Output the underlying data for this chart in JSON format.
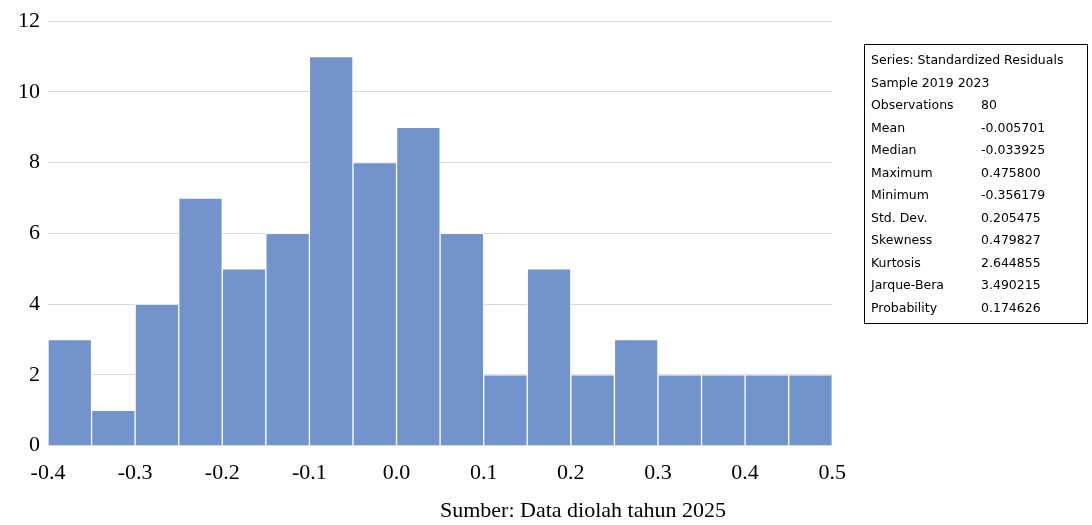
{
  "chart_data": {
    "type": "histogram",
    "bins": [
      -0.4,
      -0.35,
      -0.3,
      -0.25,
      -0.2,
      -0.15,
      -0.1,
      -0.05,
      0.0,
      0.05,
      0.1,
      0.15,
      0.2,
      0.25,
      0.3,
      0.35,
      0.4,
      0.45,
      0.5
    ],
    "values": [
      3,
      1,
      4,
      7,
      5,
      6,
      11,
      8,
      9,
      6,
      2,
      5,
      2,
      3,
      2,
      2,
      2,
      2
    ],
    "color": "#7393cc",
    "xlim": [
      -0.4,
      0.5
    ],
    "xticks": [
      {
        "value": -0.4,
        "label": "-0.4"
      },
      {
        "value": -0.3,
        "label": "-0.3"
      },
      {
        "value": -0.2,
        "label": "-0.2"
      },
      {
        "value": -0.1,
        "label": "-0.1"
      },
      {
        "value": 0,
        "label": "0.0"
      },
      {
        "value": 0.1,
        "label": "0.1"
      },
      {
        "value": 0.2,
        "label": "0.2"
      },
      {
        "value": 0.3,
        "label": "0.3"
      },
      {
        "value": 0.4,
        "label": "0.4"
      },
      {
        "value": 0.5,
        "label": "0.5"
      }
    ],
    "ylim": [
      0,
      12
    ],
    "yticks": [
      0,
      2,
      4,
      6,
      8,
      10,
      12
    ],
    "grid": "y",
    "annotations": [
      "Series: Standardized Residuals",
      "Sample 2019 2023",
      "Observations\t80",
      "Mean\t-0.005701",
      "Median\t-0.033925",
      "Maximum\t0.475800",
      "Minimum\t-0.356179",
      "Std. Dev.\t0.205475",
      "Skewness\t0.479827",
      "Kurtosis\t2.644855",
      "Jarque-Bera\t3.490215",
      "Probability\t0.174626",
      "Sumber: Data diolah tahun 2025"
    ]
  }
}
